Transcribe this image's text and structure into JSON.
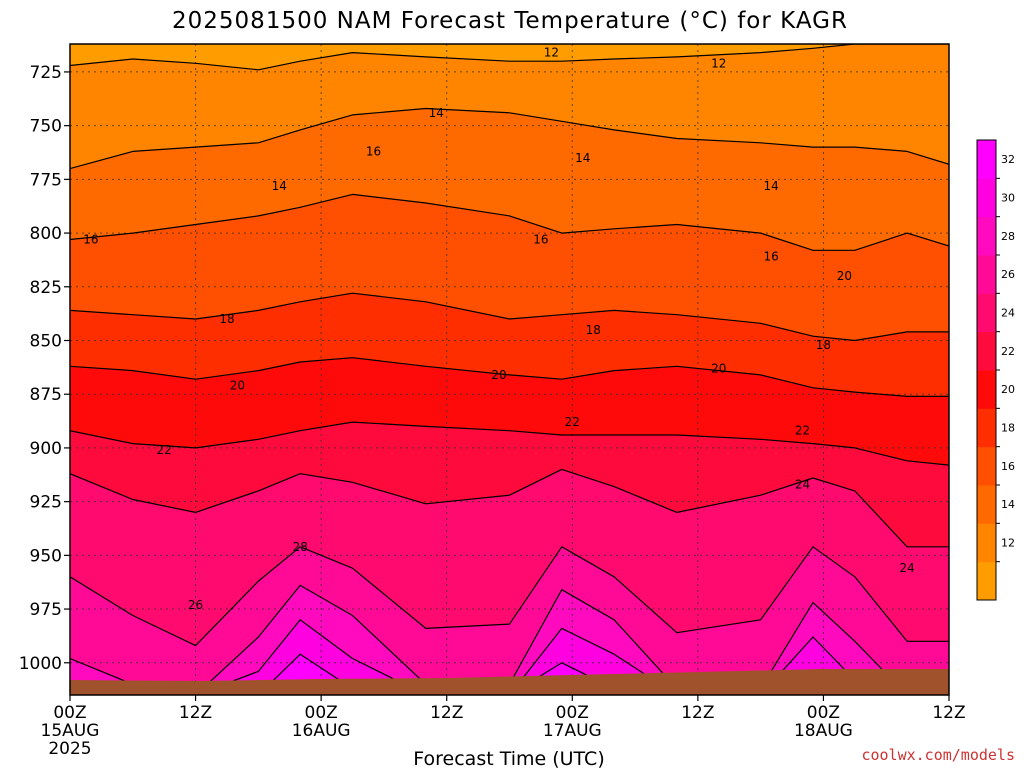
{
  "chart_data": {
    "type": "heatmap",
    "title": "2025081500 NAM Forecast Temperature (°C) for KAGR",
    "xlabel": "Forecast Time (UTC)",
    "ylabel": "",
    "credit": "coolwx.com/models",
    "y_axis": {
      "unit": "hPa",
      "inverted": true,
      "range": [
        1015,
        712
      ],
      "ticks": [
        "725",
        "750",
        "775",
        "800",
        "825",
        "850",
        "875",
        "900",
        "925",
        "950",
        "975",
        "1000"
      ]
    },
    "x_axis": {
      "range_hours": [
        0,
        84
      ],
      "ticks": [
        {
          "hour": 0,
          "label": "00Z",
          "sub": "15AUG",
          "year": "2025"
        },
        {
          "hour": 12,
          "label": "12Z",
          "sub": "",
          "year": ""
        },
        {
          "hour": 24,
          "label": "00Z",
          "sub": "16AUG",
          "year": ""
        },
        {
          "hour": 36,
          "label": "12Z",
          "sub": "",
          "year": ""
        },
        {
          "hour": 48,
          "label": "00Z",
          "sub": "17AUG",
          "year": ""
        },
        {
          "hour": 60,
          "label": "12Z",
          "sub": "",
          "year": ""
        },
        {
          "hour": 72,
          "label": "00Z",
          "sub": "18AUG",
          "year": ""
        },
        {
          "hour": 84,
          "label": "12Z",
          "sub": "",
          "year": ""
        }
      ]
    },
    "grid": true,
    "colorbar": {
      "labels": [
        "12",
        "14",
        "16",
        "18",
        "20",
        "22",
        "24",
        "26",
        "28",
        "30",
        "32"
      ],
      "levels": [
        10,
        12,
        14,
        16,
        18,
        20,
        22,
        24,
        26,
        28,
        30,
        32,
        34
      ],
      "colors": [
        "#ff9d00",
        "#ff8400",
        "#ff6a00",
        "#ff4f00",
        "#ff2e00",
        "#ff0a0a",
        "#ff0a3c",
        "#ff0a6e",
        "#ff0a96",
        "#ff0abe",
        "#ff00e0",
        "#ff00ff"
      ]
    },
    "isotherms": [
      {
        "value": 12,
        "pressure": [
          722,
          719,
          721,
          724,
          720,
          716,
          718,
          720,
          720,
          719,
          718,
          716,
          714,
          712,
          712,
          712
        ]
      },
      {
        "value": 14,
        "pressure": [
          770,
          762,
          760,
          758,
          752,
          745,
          742,
          744,
          748,
          752,
          756,
          758,
          760,
          760,
          762,
          768
        ]
      },
      {
        "value": 16,
        "pressure": [
          803,
          800,
          796,
          792,
          788,
          782,
          786,
          792,
          800,
          798,
          796,
          800,
          808,
          808,
          800,
          806
        ]
      },
      {
        "value": 18,
        "pressure": [
          836,
          838,
          840,
          836,
          832,
          828,
          832,
          840,
          838,
          836,
          838,
          842,
          848,
          850,
          846,
          846
        ]
      },
      {
        "value": 20,
        "pressure": [
          862,
          864,
          868,
          864,
          860,
          858,
          862,
          866,
          868,
          864,
          862,
          866,
          872,
          874,
          876,
          876
        ]
      },
      {
        "value": 22,
        "pressure": [
          892,
          898,
          900,
          896,
          892,
          888,
          890,
          892,
          894,
          894,
          894,
          896,
          898,
          900,
          906,
          908
        ]
      },
      {
        "value": 24,
        "pressure": [
          912,
          924,
          930,
          920,
          912,
          916,
          926,
          922,
          910,
          918,
          930,
          922,
          914,
          920,
          946,
          946
        ]
      },
      {
        "value": 26,
        "pressure": [
          960,
          978,
          992,
          962,
          946,
          956,
          984,
          982,
          946,
          960,
          986,
          980,
          946,
          960,
          990,
          990
        ]
      },
      {
        "value": 28,
        "pressure": [
          998,
          1010,
          1015,
          988,
          964,
          978,
          1010,
          1010,
          966,
          980,
          1012,
          1012,
          972,
          990,
          1015,
          1015
        ]
      },
      {
        "value": 30,
        "pressure": [
          1012,
          1015,
          1015,
          1004,
          980,
          998,
          1015,
          1015,
          984,
          996,
          1015,
          1015,
          988,
          1008,
          1015,
          1015
        ]
      },
      {
        "value": 32,
        "pressure": [
          1015,
          1015,
          1015,
          1015,
          996,
          1012,
          1015,
          1015,
          1000,
          1012,
          1015,
          1015,
          1004,
          1015,
          1015,
          1015
        ]
      }
    ],
    "isotherm_hours": [
      0,
      6,
      12,
      18,
      22,
      27,
      34,
      42,
      47,
      52,
      58,
      66,
      71,
      75,
      80,
      84
    ],
    "contour_labels": [
      {
        "text": "12",
        "hour": 46,
        "pressure": 716
      },
      {
        "text": "12",
        "hour": 62,
        "pressure": 721
      },
      {
        "text": "14",
        "hour": 35,
        "pressure": 744
      },
      {
        "text": "14",
        "hour": 20,
        "pressure": 778
      },
      {
        "text": "14",
        "hour": 49,
        "pressure": 765
      },
      {
        "text": "14",
        "hour": 67,
        "pressure": 778
      },
      {
        "text": "16",
        "hour": 2,
        "pressure": 803
      },
      {
        "text": "16",
        "hour": 29,
        "pressure": 762
      },
      {
        "text": "16",
        "hour": 45,
        "pressure": 803
      },
      {
        "text": "16",
        "hour": 67,
        "pressure": 811
      },
      {
        "text": "18",
        "hour": 15,
        "pressure": 840
      },
      {
        "text": "18",
        "hour": 50,
        "pressure": 845
      },
      {
        "text": "18",
        "hour": 72,
        "pressure": 852
      },
      {
        "text": "20",
        "hour": 16,
        "pressure": 871
      },
      {
        "text": "20",
        "hour": 41,
        "pressure": 866
      },
      {
        "text": "20",
        "hour": 62,
        "pressure": 863
      },
      {
        "text": "20",
        "hour": 74,
        "pressure": 820
      },
      {
        "text": "22",
        "hour": 9,
        "pressure": 901
      },
      {
        "text": "22",
        "hour": 48,
        "pressure": 888
      },
      {
        "text": "22",
        "hour": 70,
        "pressure": 892
      },
      {
        "text": "24",
        "hour": 70,
        "pressure": 917
      },
      {
        "text": "24",
        "hour": 80,
        "pressure": 956
      },
      {
        "text": "26",
        "hour": 12,
        "pressure": 973
      },
      {
        "text": "28",
        "hour": 22,
        "pressure": 946
      }
    ]
  }
}
